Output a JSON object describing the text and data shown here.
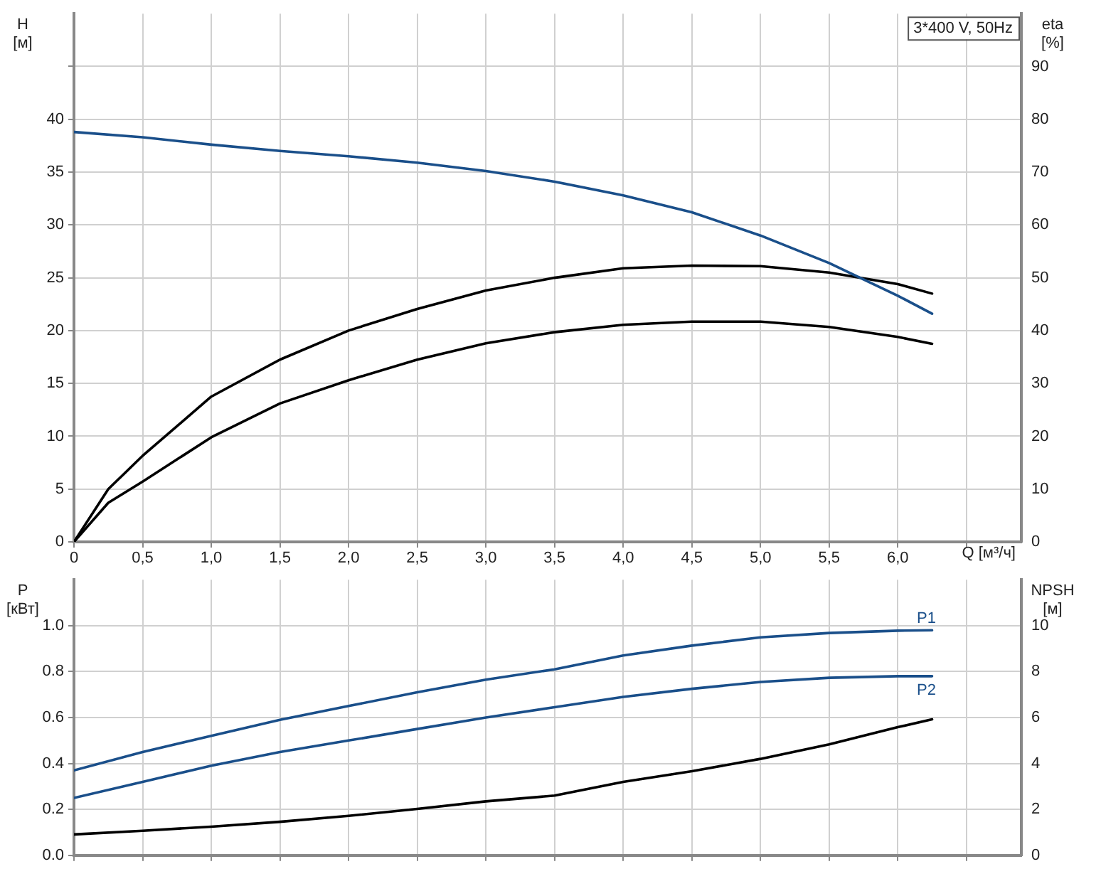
{
  "chart_data": [
    {
      "type": "line",
      "xlabel": "Q [м³/ч]",
      "ylabel": "H [м]",
      "y2label": "eta [%]",
      "annotations": [
        "3*400 V, 50Hz"
      ],
      "xlim": [
        0,
        6.9
      ],
      "xticks": [
        {
          "value": 0,
          "label": "0"
        },
        {
          "value": 0.5,
          "label": "0,5"
        },
        {
          "value": 1,
          "label": "1,0"
        },
        {
          "value": 1.5,
          "label": "1,5"
        },
        {
          "value": 2,
          "label": "2,0"
        },
        {
          "value": 2.5,
          "label": "2,5"
        },
        {
          "value": 3,
          "label": "3,0"
        },
        {
          "value": 3.5,
          "label": "3,5"
        },
        {
          "value": 4,
          "label": "4,0"
        },
        {
          "value": 4.5,
          "label": "4,5"
        },
        {
          "value": 5,
          "label": "5,0"
        },
        {
          "value": 5.5,
          "label": "5,5"
        },
        {
          "value": 6,
          "label": "6,0"
        },
        {
          "value": 6.5,
          "label": null
        }
      ],
      "ylim": [
        0,
        50
      ],
      "yticks": [
        0,
        5,
        10,
        15,
        20,
        25,
        30,
        35,
        40,
        {
          "value": 45,
          "label": null
        }
      ],
      "y2lim": [
        0,
        100
      ],
      "y2ticks": [
        0,
        10,
        20,
        30,
        40,
        50,
        60,
        70,
        80,
        90
      ],
      "grid": true,
      "legend": false,
      "marker": "none",
      "line_style": "solid",
      "series": [
        {
          "color": "#1a4f8a",
          "x": [
            0,
            0.5,
            1,
            1.5,
            2,
            2.5,
            3,
            3.5,
            4,
            4.5,
            5,
            5.5,
            6,
            6.25
          ],
          "values": [
            38.8,
            38.3,
            37.6,
            37.0,
            36.5,
            35.9,
            35.1,
            34.1,
            32.8,
            31.2,
            29.0,
            26.4,
            23.3,
            21.6
          ]
        },
        {
          "color": "#000000",
          "axis": "y2",
          "x": [
            0,
            0.25,
            0.5,
            1,
            1.5,
            2,
            2.5,
            3,
            3.5,
            4,
            4.5,
            5,
            5.5,
            6,
            6.25
          ],
          "values": [
            0,
            10.0,
            16.3,
            27.5,
            34.5,
            40.0,
            44.1,
            47.6,
            50.0,
            51.8,
            52.3,
            52.2,
            51.0,
            48.8,
            47.0
          ]
        },
        {
          "color": "#000000",
          "axis": "y2",
          "x": [
            0,
            0.25,
            0.5,
            1,
            1.5,
            2,
            2.5,
            3,
            3.5,
            4,
            4.5,
            5,
            5.5,
            6,
            6.25
          ],
          "values": [
            0,
            7.4,
            11.4,
            19.8,
            26.2,
            30.6,
            34.5,
            37.6,
            39.7,
            41.1,
            41.7,
            41.7,
            40.7,
            38.8,
            37.5
          ]
        }
      ]
    },
    {
      "type": "line",
      "ylabel": "P [кВт]",
      "y2label": "NPSH [м]",
      "xlim": [
        0,
        6.9
      ],
      "xticks": [
        0,
        0.5,
        1,
        1.5,
        2,
        2.5,
        3,
        3.5,
        4,
        4.5,
        5,
        5.5,
        6,
        6.5
      ],
      "tick_labels": "y",
      "ylim": [
        0,
        1.2
      ],
      "yticks": [
        {
          "value": 0,
          "label": "0.0"
        },
        {
          "value": 0.2,
          "label": "0.2"
        },
        {
          "value": 0.4,
          "label": "0.4"
        },
        {
          "value": 0.6,
          "label": "0.6"
        },
        {
          "value": 0.8,
          "label": "0.8"
        },
        {
          "value": 1,
          "label": "1.0"
        }
      ],
      "y2lim": [
        0,
        12
      ],
      "y2ticks": [
        0,
        2,
        4,
        6,
        8,
        10
      ],
      "grid": true,
      "legend": false,
      "marker": "none",
      "line_style": "solid",
      "series": [
        {
          "name": "P1",
          "color": "#1a4f8a",
          "x": [
            0,
            0.5,
            1,
            1.5,
            2,
            2.5,
            3,
            3.5,
            4,
            4.5,
            5,
            5.5,
            6,
            6.25
          ],
          "values": [
            0.37,
            0.45,
            0.52,
            0.59,
            0.65,
            0.71,
            0.765,
            0.81,
            0.87,
            0.913,
            0.949,
            0.968,
            0.978,
            0.98
          ]
        },
        {
          "name": "P2",
          "color": "#1a4f8a",
          "x": [
            0,
            0.5,
            1,
            1.5,
            2,
            2.5,
            3,
            3.5,
            4,
            4.5,
            5,
            5.5,
            6,
            6.25
          ],
          "values": [
            0.25,
            0.32,
            0.39,
            0.45,
            0.5,
            0.55,
            0.6,
            0.645,
            0.69,
            0.725,
            0.755,
            0.773,
            0.78,
            0.78
          ]
        },
        {
          "color": "#000000",
          "axis": "y2",
          "x": [
            0,
            0.5,
            1,
            1.5,
            2,
            2.5,
            3,
            3.5,
            4,
            4.5,
            5,
            5.5,
            6,
            6.25
          ],
          "values": [
            0.91,
            1.07,
            1.25,
            1.46,
            1.72,
            2.02,
            2.35,
            2.6,
            3.2,
            3.66,
            4.2,
            4.83,
            5.58,
            5.92
          ]
        }
      ]
    }
  ]
}
